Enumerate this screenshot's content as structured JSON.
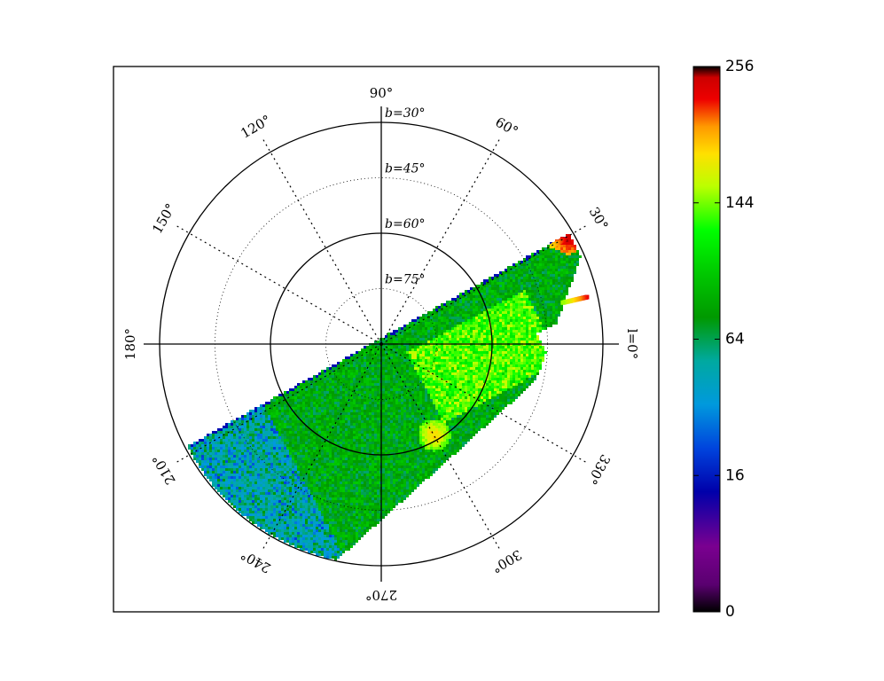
{
  "chart_data": {
    "type": "heatmap",
    "projection": "polar (galactic longitude l, latitude b)",
    "title": "",
    "colormap": "nipy_spectral",
    "color_scale": "log",
    "colorbar": {
      "ticks": [
        "0",
        "16",
        "64",
        "144",
        "256"
      ],
      "tick_values": [
        0,
        16,
        64,
        144,
        256
      ],
      "range": [
        0,
        256
      ],
      "position": "right"
    },
    "longitude_labels": [
      "l=0°",
      "30°",
      "60°",
      "90°",
      "120°",
      "150°",
      "180°",
      "210°",
      "240°",
      "270°",
      "300°",
      "330°"
    ],
    "longitude_values": [
      0,
      30,
      60,
      90,
      120,
      150,
      180,
      210,
      240,
      270,
      300,
      330
    ],
    "latitude_labels": [
      "b=30°",
      "b=45°",
      "b=60°",
      "b=75°"
    ],
    "latitude_values": [
      30,
      45,
      60,
      75
    ],
    "grid": true,
    "coverage": {
      "description": "survey footprint band",
      "l_range_deg": [
        -10,
        220
      ],
      "b_range_deg": [
        30,
        90
      ],
      "typical_count": 80,
      "max_count": 256,
      "hotspots": [
        {
          "l": 30,
          "b": 32,
          "count": 240
        },
        {
          "l": 13,
          "b": 32,
          "count": 230
        },
        {
          "l": 300,
          "b": 62,
          "count": 180
        }
      ]
    }
  }
}
